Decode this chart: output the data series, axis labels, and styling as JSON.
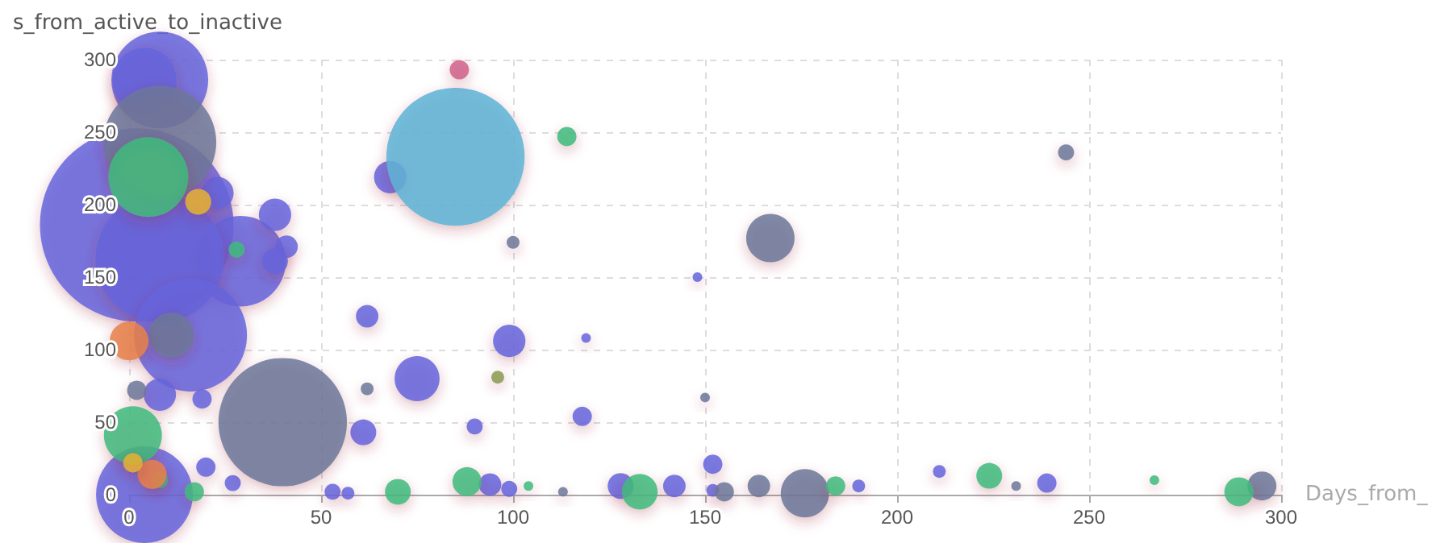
{
  "chart_data": {
    "type": "bubble",
    "xlabel": "Days_from_",
    "ylabel": "s_from_active_to_inactive",
    "xlim": [
      0,
      300
    ],
    "xticks": [
      0,
      50,
      100,
      150,
      200,
      250,
      300
    ],
    "ylim": [
      0,
      300
    ],
    "yticks": [
      0,
      50,
      100,
      150,
      200,
      250,
      300
    ],
    "grid": true,
    "series": [
      {
        "color": "#6464dc",
        "x": [
          2,
          8,
          4,
          29,
          8,
          16,
          4,
          23,
          38,
          41,
          38,
          68,
          62,
          75,
          61,
          99,
          90,
          118,
          119,
          148,
          152,
          211,
          239,
          8,
          19,
          53,
          57,
          94,
          99,
          128,
          142,
          152,
          190,
          20,
          27
        ],
        "values": [
          186,
          286,
          286,
          161,
          163,
          110,
          0,
          208,
          193,
          171,
          161,
          219,
          123,
          80,
          43,
          106,
          47,
          54,
          108,
          150,
          21,
          16,
          8,
          69,
          66,
          2,
          1,
          7,
          4,
          6,
          6,
          3,
          6,
          19,
          8
        ],
        "sizes": [
          1,
          0.25,
          0.11,
          0.22,
          0.44,
          0.34,
          0.25,
          0.028,
          0.028,
          0.0136,
          0.0178,
          0.028,
          0.0136,
          0.054,
          0.0178,
          0.028,
          0.0069,
          0.01,
          0.0025,
          0.0025,
          0.01,
          0.0044,
          0.01,
          0.028,
          0.01,
          0.0069,
          0.0044,
          0.0136,
          0.0069,
          0.0178,
          0.0136,
          0.0044,
          0.0044,
          0.01,
          0.0069
        ]
      },
      {
        "color": "#6b7799",
        "x": [
          8,
          40,
          167,
          244,
          100,
          150,
          2,
          11,
          62,
          176,
          164,
          295,
          113,
          155,
          231
        ],
        "values": [
          243,
          50,
          177,
          236,
          174,
          67,
          72,
          110,
          73,
          1,
          6,
          6,
          2,
          2,
          6
        ],
        "sizes": [
          0.34,
          0.44,
          0.0625,
          0.0069,
          0.0044,
          0.0025,
          0.01,
          0.054,
          0.0044,
          0.0625,
          0.0136,
          0.0225,
          0.0025,
          0.01,
          0.0025
        ]
      },
      {
        "color": "#3cba7c",
        "x": [
          5,
          1,
          114,
          28,
          88,
          133,
          224,
          184,
          267,
          289,
          104,
          70,
          17,
          8
        ],
        "values": [
          219,
          41,
          247,
          169,
          9,
          2,
          13,
          6,
          10,
          2,
          6,
          2,
          2,
          10
        ],
        "sizes": [
          0.17,
          0.09,
          0.01,
          0.0069,
          0.0225,
          0.034,
          0.0178,
          0.01,
          0.0025,
          0.0225,
          0.0025,
          0.0178,
          0.01,
          0.0069
        ]
      },
      {
        "color": "#e8804a",
        "x": [
          0,
          6
        ],
        "values": [
          106,
          14
        ],
        "sizes": [
          0.04,
          0.0225
        ]
      },
      {
        "color": "#e6b030",
        "x": [
          18,
          1
        ],
        "values": [
          202,
          22
        ],
        "sizes": [
          0.0178,
          0.01
        ]
      },
      {
        "color": "#5cb3d6",
        "x": [
          85
        ],
        "values": [
          233
        ],
        "sizes": [
          0.51
        ]
      },
      {
        "color": "#d0608a",
        "x": [
          86
        ],
        "values": [
          293
        ],
        "sizes": [
          0.01
        ]
      },
      {
        "color": "#8a9a50",
        "x": [
          96
        ],
        "values": [
          81
        ],
        "sizes": [
          0.0044
        ]
      }
    ]
  }
}
